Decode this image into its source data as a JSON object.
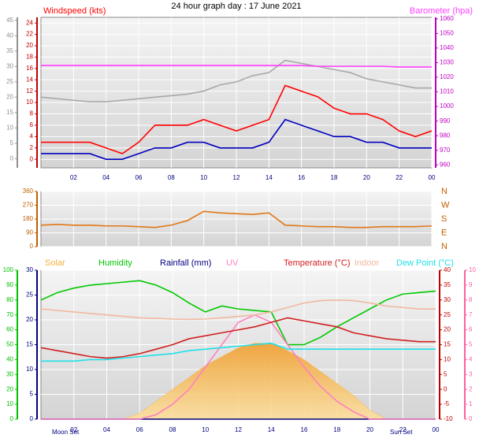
{
  "chart_data": [
    {
      "type": "line",
      "title": "24 hour graph day : 17 June 2021",
      "x": [
        0,
        1,
        2,
        3,
        4,
        5,
        6,
        7,
        8,
        9,
        10,
        11,
        12,
        13,
        14,
        15,
        16,
        17,
        18,
        19,
        20,
        21,
        22,
        23,
        24
      ],
      "xlim": [
        0,
        24
      ],
      "xticks": [
        {
          "value": 2,
          "label": "02"
        },
        {
          "value": 4,
          "label": "04"
        },
        {
          "value": 6,
          "label": "06"
        },
        {
          "value": 8,
          "label": "08"
        },
        10,
        12,
        14,
        16,
        18,
        20,
        22,
        {
          "value": 24,
          "label": "00"
        }
      ],
      "ylim": [
        -1.5,
        25
      ],
      "yticks": [
        0,
        2,
        4,
        6,
        8,
        10,
        12,
        14,
        16,
        18,
        20,
        22,
        24
      ],
      "y2lim": [
        958,
        1061
      ],
      "y2ticks": [
        960,
        970,
        980,
        990,
        1000,
        1010,
        1020,
        1030,
        1040,
        1050,
        1060
      ],
      "y3lim": [
        -3,
        46
      ],
      "y3ticks": [
        0,
        5,
        10,
        15,
        20,
        25,
        30,
        35,
        40,
        45
      ],
      "grid": true,
      "series": [
        {
          "color": "#a8a8a8",
          "axis": "y3",
          "values": [
            20,
            19.5,
            19,
            18.5,
            18.5,
            19,
            19.5,
            20,
            20.5,
            21,
            22,
            24,
            25,
            27,
            28,
            32,
            31,
            30,
            29,
            28,
            26,
            25,
            24,
            23,
            23
          ]
        },
        {
          "name": "Windspeed (kts)",
          "color": "#ff0000",
          "values": [
            3,
            3,
            3,
            3,
            2,
            1,
            3,
            6,
            6,
            6,
            7,
            6,
            5,
            6,
            7,
            13,
            12,
            11,
            9,
            8,
            8,
            7,
            5,
            4,
            5
          ]
        },
        {
          "color": "#0000c0",
          "values": [
            1,
            1,
            1,
            1,
            0,
            0,
            1,
            2,
            2,
            3,
            3,
            2,
            2,
            2,
            3,
            7,
            6,
            5,
            4,
            4,
            3,
            3,
            2,
            2,
            2
          ]
        },
        {
          "name": "Barometer (hpa)",
          "color": "#ff40ff",
          "axis": "y2",
          "values": [
            1028,
            1028,
            1028,
            1028,
            1028,
            1028,
            1028,
            1028,
            1028,
            1028,
            1028,
            1028,
            1028,
            1028,
            1028,
            1028,
            1028,
            1027.5,
            1027.5,
            1027.5,
            1027.5,
            1027.5,
            1027,
            1027,
            1027
          ]
        }
      ]
    },
    {
      "type": "line",
      "x": [
        0,
        1,
        2,
        3,
        4,
        5,
        6,
        7,
        8,
        9,
        10,
        11,
        12,
        13,
        14,
        15,
        16,
        17,
        18,
        19,
        20,
        21,
        22,
        23,
        24
      ],
      "xlim": [
        0,
        24
      ],
      "ylim": [
        0,
        360
      ],
      "yticks": [
        0,
        90,
        180,
        270,
        360
      ],
      "compass": [
        "N",
        "W",
        "S",
        "E",
        "N"
      ],
      "grid": true,
      "series": [
        {
          "color": "#e07818",
          "values": [
            140,
            145,
            140,
            140,
            135,
            135,
            130,
            125,
            140,
            170,
            230,
            220,
            215,
            210,
            220,
            140,
            135,
            130,
            130,
            125,
            125,
            130,
            130,
            130,
            135
          ]
        }
      ]
    },
    {
      "type": "line",
      "x": [
        0,
        1,
        2,
        3,
        4,
        5,
        6,
        7,
        8,
        9,
        10,
        11,
        12,
        13,
        14,
        15,
        16,
        17,
        18,
        19,
        20,
        21,
        22,
        23,
        24
      ],
      "xlim": [
        0,
        24
      ],
      "xticks": [
        {
          "value": 2,
          "label": "02"
        },
        {
          "value": 4,
          "label": "04"
        },
        {
          "value": 6,
          "label": "06"
        },
        {
          "value": 8,
          "label": "08"
        },
        10,
        12,
        14,
        16,
        18,
        20,
        22,
        {
          "value": 24,
          "label": "00"
        }
      ],
      "ylim": [
        0,
        100
      ],
      "yticks": [
        0,
        10,
        20,
        30,
        40,
        50,
        60,
        70,
        80,
        90,
        100
      ],
      "y2lim": [
        -10,
        40
      ],
      "y2ticks": [
        -10,
        -5,
        0,
        5,
        10,
        15,
        20,
        25,
        30,
        35,
        40
      ],
      "y3lim": [
        0,
        30
      ],
      "y3ticks": [
        0,
        5,
        10,
        15,
        20,
        25,
        30
      ],
      "y4lim": [
        0,
        10
      ],
      "y4ticks": [
        0,
        1,
        2,
        3,
        4,
        5,
        6,
        7,
        8,
        9,
        10
      ],
      "grid": true,
      "series": [
        {
          "name": "Solar",
          "color": "#f5b040",
          "axis": "y2",
          "kind": "area",
          "values": [
            -10,
            -10,
            -10,
            -10,
            -10,
            -10,
            -8,
            -4,
            0,
            4,
            8,
            11,
            14,
            15.5,
            15.5,
            13,
            10,
            6,
            2,
            -2,
            -7,
            -10,
            -10,
            -10,
            -10
          ]
        },
        {
          "name": "Humidity",
          "color": "#00c800",
          "values": [
            80,
            85,
            88,
            90,
            91,
            92,
            93,
            90,
            85,
            78,
            72,
            76,
            74,
            73,
            72,
            50,
            50,
            55,
            62,
            68,
            74,
            80,
            84,
            85,
            86
          ]
        },
        {
          "name": "Rainfall (mm)",
          "color": "#000080",
          "axis": "y3",
          "values": [
            0,
            0,
            0,
            0,
            0,
            0,
            0,
            0,
            0,
            0,
            0,
            0,
            0,
            0,
            0,
            0,
            0,
            0,
            0,
            0,
            0,
            0,
            0,
            0,
            0
          ]
        },
        {
          "name": "UV",
          "color": "#ff80c0",
          "axis": "y4",
          "values": [
            0,
            0,
            0,
            0,
            0,
            0,
            0,
            0.3,
            1,
            2,
            3.5,
            5,
            6.5,
            7,
            6.5,
            5,
            3.5,
            2.2,
            1.2,
            0.5,
            0,
            0,
            0,
            0,
            0
          ]
        },
        {
          "name": "Temperature (°C)",
          "color": "#d02020",
          "axis": "y2",
          "values": [
            14,
            13,
            12,
            11,
            10.5,
            11,
            12,
            13.5,
            15,
            17,
            18,
            19,
            20,
            21,
            22.5,
            24,
            23,
            22,
            21,
            19,
            18,
            17,
            16.5,
            16,
            16
          ]
        },
        {
          "name": "Indoor",
          "color": "#f0b8a0",
          "axis": "y2",
          "values": [
            27,
            26.5,
            26,
            25.5,
            25,
            24.5,
            24,
            23.8,
            23.6,
            23.5,
            23.6,
            24,
            24.5,
            25,
            26,
            27.5,
            29,
            29.8,
            30,
            29.8,
            29,
            28,
            27.5,
            27,
            27
          ]
        },
        {
          "name": "Dew Point (°C)",
          "color": "#20e0e8",
          "axis": "y2",
          "values": [
            9.5,
            9.5,
            9.5,
            10,
            10,
            10.5,
            11,
            11.5,
            12,
            13,
            13.5,
            14,
            14.5,
            15,
            15.5,
            13.5,
            13.5,
            13.5,
            13.5,
            13.5,
            13.5,
            13.5,
            13.5,
            13.5,
            13.5
          ]
        }
      ],
      "annotations": [
        "Moon Set",
        "Sun Set"
      ]
    }
  ]
}
